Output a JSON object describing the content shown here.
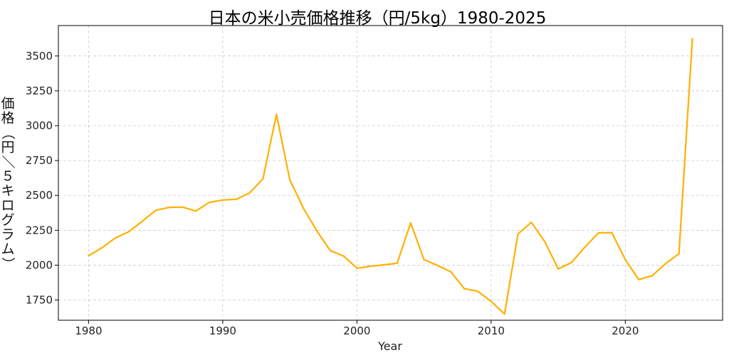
{
  "chart_data": {
    "type": "line",
    "title": "日本の米小売価格推移（円/5kg）1980-2025",
    "xlabel": "Year",
    "ylabel": "価格（円／５キログラム）",
    "xlim": [
      1977.75,
      2027.25
    ],
    "ylim": [
      1605,
      3718
    ],
    "xticks": [
      1980,
      1990,
      2000,
      2010,
      2020
    ],
    "yticks": [
      1750,
      2000,
      2250,
      2500,
      2750,
      3000,
      3250,
      3500
    ],
    "grid": true,
    "line_color": "#FFB000",
    "series": [
      {
        "x": [
          1980,
          1981,
          1982,
          1983,
          1984,
          1985,
          1986,
          1987,
          1988,
          1989,
          1990,
          1991,
          1992,
          1993,
          1994,
          1995,
          1996,
          1997,
          1998,
          1999,
          2000,
          2001,
          2002,
          2003,
          2004,
          2005,
          2006,
          2007,
          2008,
          2009,
          2010,
          2011,
          2012,
          2013,
          2014,
          2015,
          2016,
          2017,
          2018,
          2019,
          2020,
          2021,
          2022,
          2023,
          2024,
          2025
        ],
        "values": [
          2068,
          2125,
          2195,
          2240,
          2315,
          2393,
          2414,
          2416,
          2388,
          2450,
          2467,
          2472,
          2518,
          2620,
          3081,
          2612,
          2410,
          2248,
          2105,
          2066,
          1978,
          1992,
          2002,
          2014,
          2303,
          2040,
          1998,
          1953,
          1831,
          1813,
          1740,
          1650,
          2224,
          2307,
          2168,
          1973,
          2020,
          2131,
          2232,
          2233,
          2040,
          1897,
          1924,
          2011,
          2082,
          3624
        ]
      }
    ]
  }
}
